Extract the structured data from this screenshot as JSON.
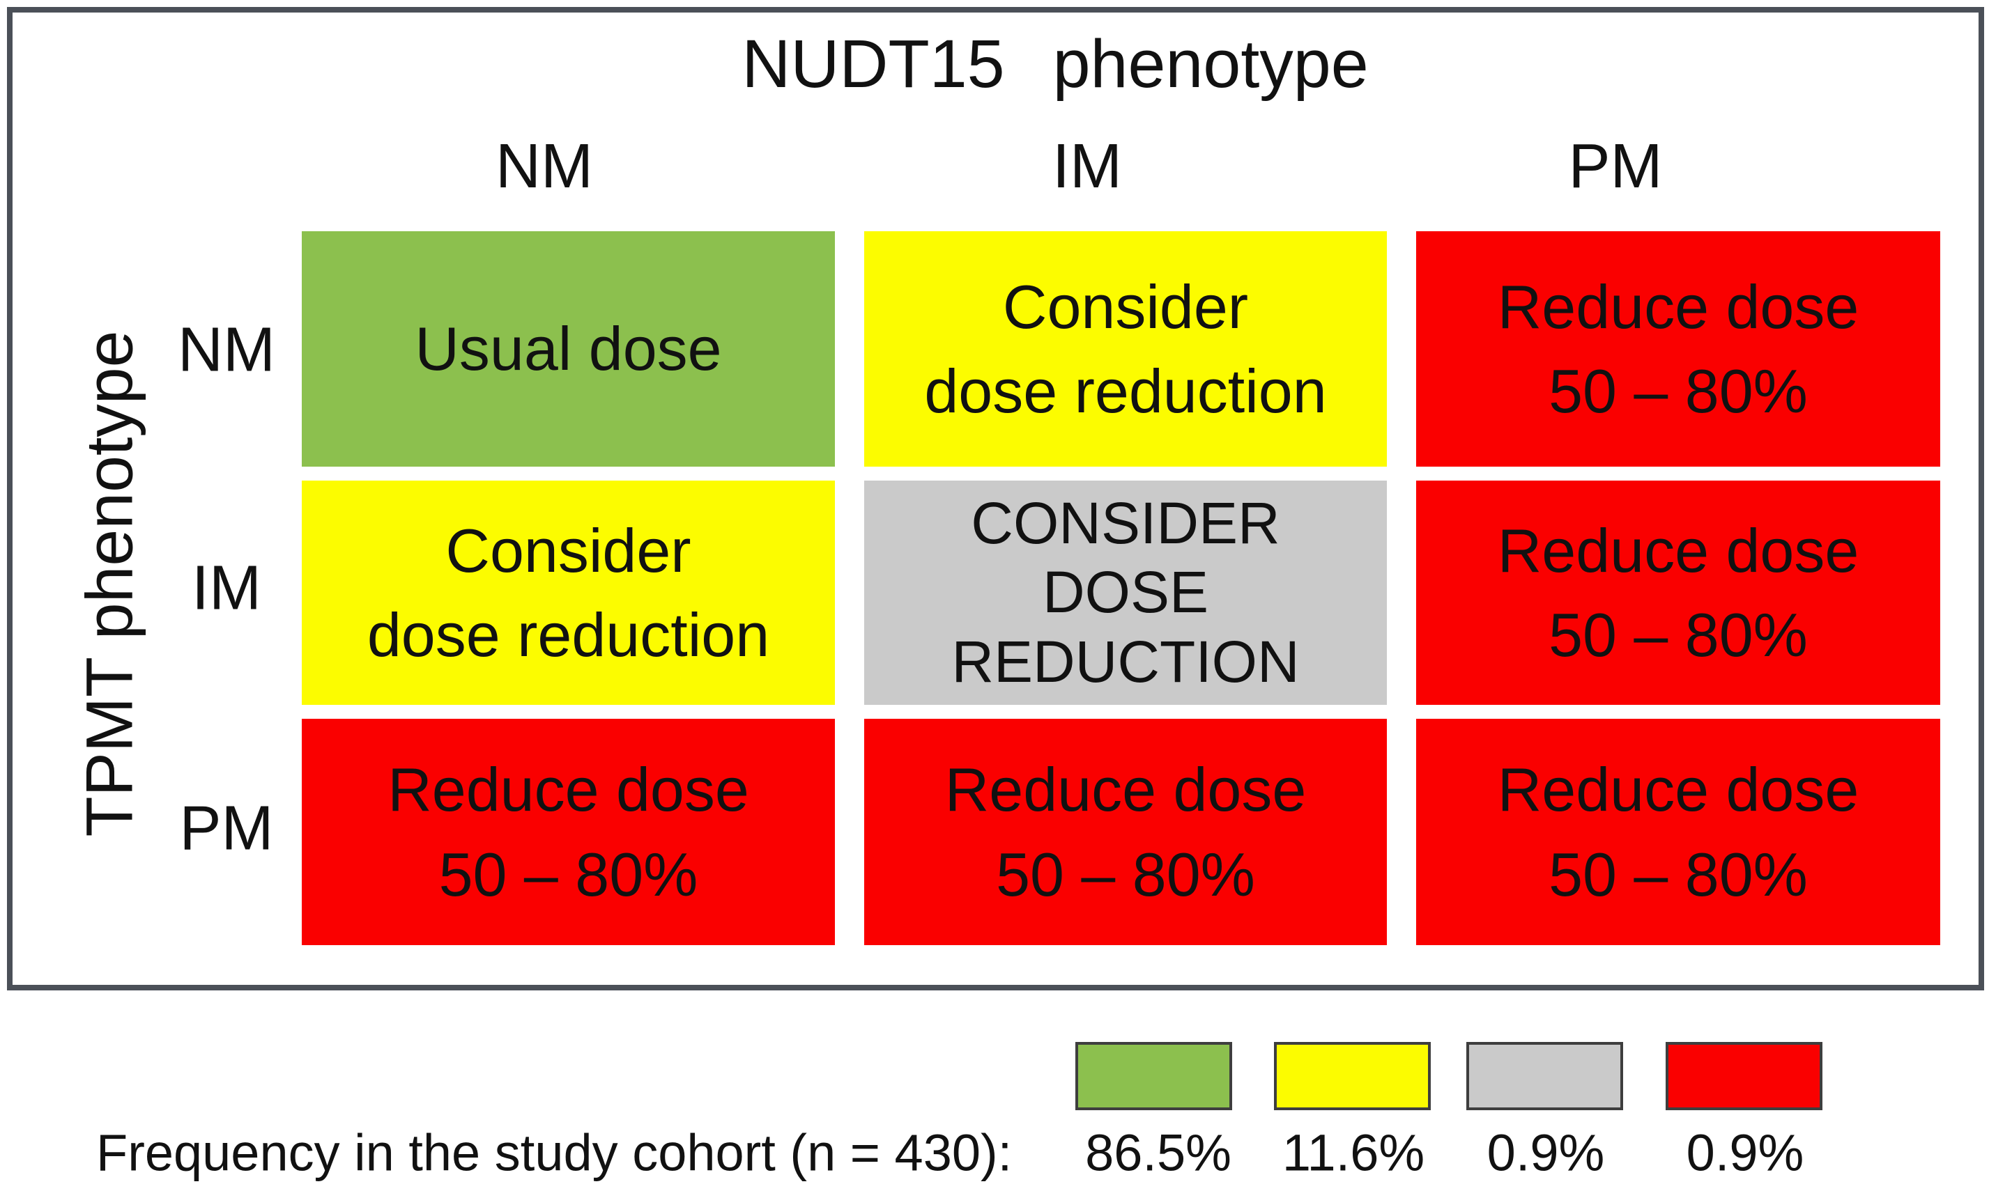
{
  "title": "NUDT15 phenotype",
  "y_axis_label": "TPMT phenotype",
  "columns": [
    "NM",
    "IM",
    "PM"
  ],
  "rows": [
    "NM",
    "IM",
    "PM"
  ],
  "colors": {
    "green": "#8CC04E",
    "yellow": "#FCFC00",
    "gray": "#CACACA",
    "red": "#FA0000",
    "panel_border": "#4B5058",
    "swatch_border": "#3E3E3E",
    "text": "#111111"
  },
  "cells": [
    [
      {
        "color": "green",
        "lines": [
          "Usual dose"
        ]
      },
      {
        "color": "yellow",
        "lines": [
          "Consider",
          "dose reduction"
        ]
      },
      {
        "color": "red",
        "lines": [
          "Reduce dose",
          "50 – 80%"
        ]
      }
    ],
    [
      {
        "color": "yellow",
        "lines": [
          "Consider",
          "dose reduction"
        ]
      },
      {
        "color": "gray",
        "lines": [
          "CONSIDER",
          "DOSE",
          "REDUCTION"
        ]
      },
      {
        "color": "red",
        "lines": [
          "Reduce dose",
          "50 – 80%"
        ]
      }
    ],
    [
      {
        "color": "red",
        "lines": [
          "Reduce dose",
          "50 – 80%"
        ]
      },
      {
        "color": "red",
        "lines": [
          "Reduce dose",
          "50 – 80%"
        ]
      },
      {
        "color": "red",
        "lines": [
          "Reduce dose",
          "50 – 80%"
        ]
      }
    ]
  ],
  "legend": {
    "caption": "Frequency in the study cohort (n = 430):",
    "items": [
      {
        "color": "green",
        "value": "86.5%"
      },
      {
        "color": "yellow",
        "value": "11.6%"
      },
      {
        "color": "gray",
        "value": "0.9%"
      },
      {
        "color": "red",
        "value": "0.9%"
      }
    ]
  },
  "chart_data": {
    "type": "table",
    "title": "NUDT15 phenotype",
    "row_axis": "TPMT phenotype",
    "columns": [
      "NM",
      "IM",
      "PM"
    ],
    "rows": [
      "NM",
      "IM",
      "PM"
    ],
    "values": [
      [
        "Usual dose",
        "Consider dose reduction",
        "Reduce dose 50 – 80%"
      ],
      [
        "Consider dose reduction",
        "CONSIDER DOSE REDUCTION",
        "Reduce dose 50 – 80%"
      ],
      [
        "Reduce dose 50 – 80%",
        "Reduce dose 50 – 80%",
        "Reduce dose 50 – 80%"
      ]
    ],
    "cell_colors": [
      [
        "green",
        "yellow",
        "red"
      ],
      [
        "yellow",
        "gray",
        "red"
      ],
      [
        "red",
        "red",
        "red"
      ]
    ],
    "legend_frequencies": {
      "green": "86.5%",
      "yellow": "11.6%",
      "gray": "0.9%",
      "red": "0.9%"
    }
  }
}
